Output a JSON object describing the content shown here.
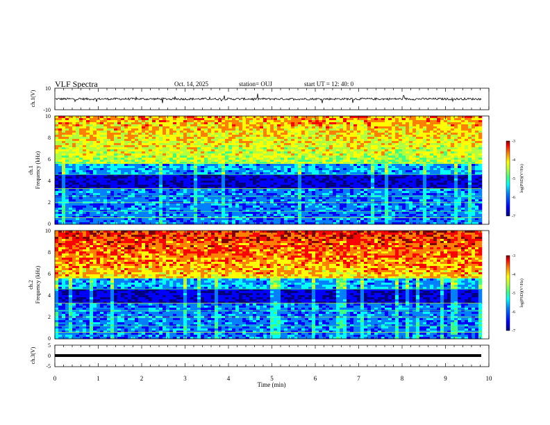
{
  "header": {
    "title": "VLF Spectra",
    "date": "Oct. 14, 2025",
    "station": "station= OUJ",
    "start_ut": "start  UT  =   12: 40: 0"
  },
  "chart_data": [
    {
      "type": "line",
      "name": "ch1-waveform",
      "ylabel": "ch.1(V)",
      "ylim": [
        -10,
        10
      ],
      "yticks": [
        "10",
        "-10"
      ],
      "x": [
        0,
        10
      ],
      "y_mean": 0.0,
      "note": "noisy time series near 0 V with impulsive spikes"
    },
    {
      "type": "heatmap",
      "name": "ch1-spectrogram",
      "ylabel": "ch.1",
      "ylabel2": "Frequency  (kHz)",
      "ylim": [
        0,
        10
      ],
      "yticks": [
        "0",
        "2",
        "4",
        "6",
        "8",
        "10"
      ],
      "xlim": [
        0,
        10
      ],
      "colorbar": {
        "label": "log(PSD)(V²/Hz)",
        "range": [
          -7,
          -3
        ],
        "ticks": [
          "-3",
          "-4",
          "-5",
          "-6",
          "-7"
        ]
      }
    },
    {
      "type": "heatmap",
      "name": "ch2-spectrogram",
      "ylabel": "ch.2",
      "ylabel2": "Frequency  (kHz)",
      "ylim": [
        0,
        10
      ],
      "yticks": [
        "0",
        "2",
        "4",
        "6",
        "8",
        "10"
      ],
      "xlim": [
        0,
        10
      ],
      "colorbar": {
        "label": "log(PSD)(V²/Hz)",
        "range": [
          -7,
          -3
        ],
        "ticks": [
          "-3",
          "-4",
          "-5",
          "-6",
          "-7"
        ]
      }
    },
    {
      "type": "line",
      "name": "ch3-waveform",
      "ylabel": "ch.3(V)",
      "ylim": [
        -5,
        5
      ],
      "yticks": [
        "5",
        "0",
        "-5"
      ],
      "y_mean": -1.0,
      "note": "flat thick line near -1 V"
    }
  ],
  "x_axis": {
    "label": "Time  (min)",
    "range": [
      0,
      10
    ],
    "ticks": [
      "0",
      "1",
      "2",
      "3",
      "4",
      "5",
      "6",
      "7",
      "8",
      "9",
      "10"
    ]
  },
  "colors": {
    "frame": "#000000",
    "trace": "#000000",
    "cmap": [
      "#00007f",
      "#0000ff",
      "#0080ff",
      "#00ffff",
      "#40ff80",
      "#b0ff40",
      "#ffff00",
      "#ff8000",
      "#ff0000",
      "#7f0000"
    ]
  }
}
